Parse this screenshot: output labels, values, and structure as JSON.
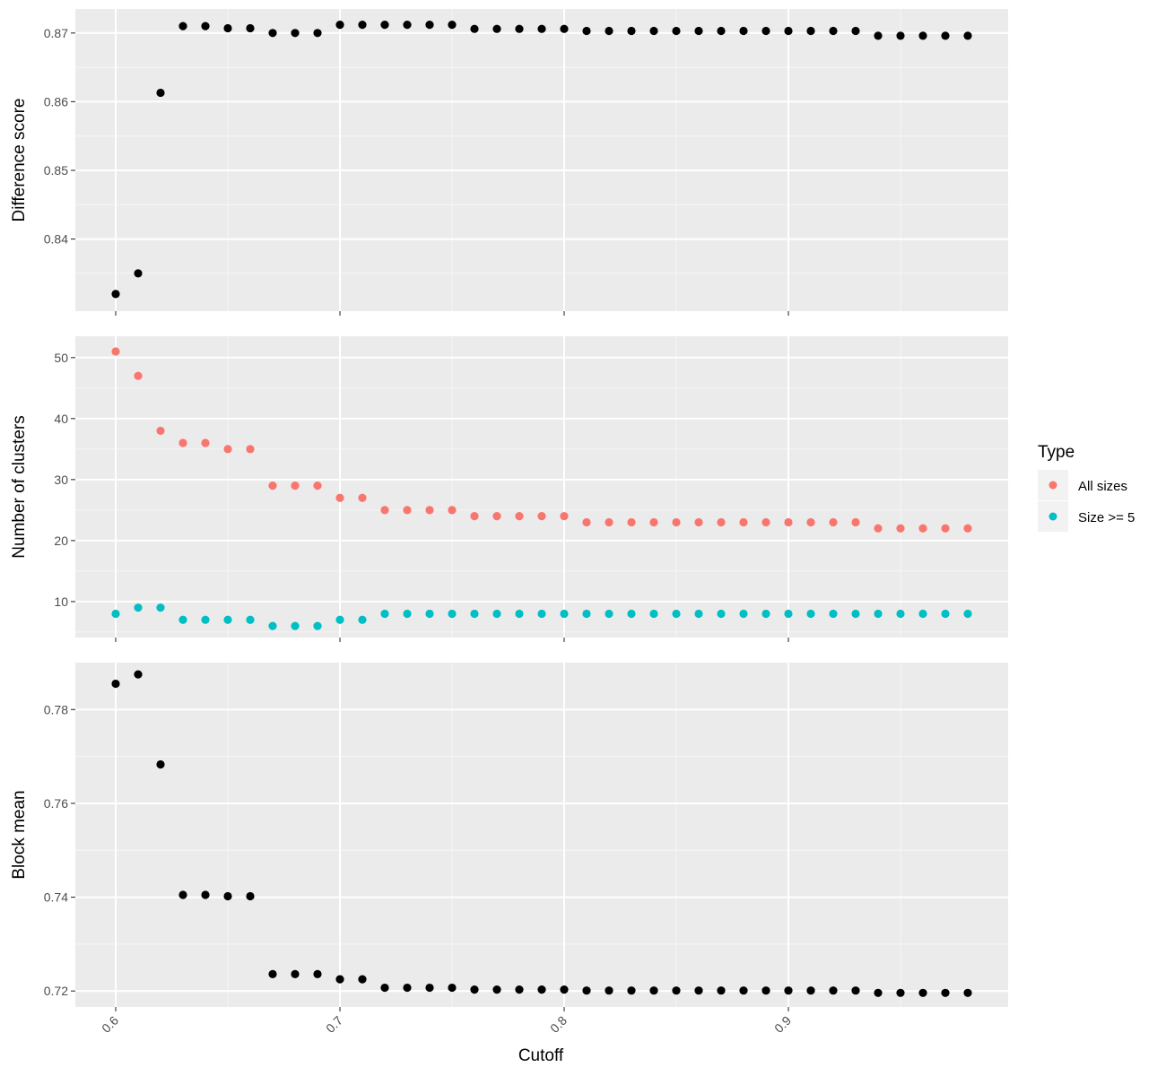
{
  "chart_data": [
    {
      "type": "scatter",
      "panel": "top",
      "ylabel": "Difference score",
      "ylim": [
        0.8295,
        0.8735
      ],
      "yticks": [
        0.84,
        0.85,
        0.86,
        0.87
      ],
      "ytick_labels": [
        "0.84",
        "0.85",
        "0.86",
        "0.87"
      ],
      "grid": true,
      "series": [
        {
          "color": "#000000",
          "values": [
            0.832,
            0.835,
            0.8613,
            0.871,
            0.871,
            0.8707,
            0.8707,
            0.87,
            0.87,
            0.87,
            0.8712,
            0.8712,
            0.8712,
            0.8712,
            0.8712,
            0.8712,
            0.8706,
            0.8706,
            0.8706,
            0.8706,
            0.8706,
            0.8703,
            0.8703,
            0.8703,
            0.8703,
            0.8703,
            0.8703,
            0.8703,
            0.8703,
            0.8703,
            0.8703,
            0.8703,
            0.8703,
            0.8703,
            0.8696,
            0.8696,
            0.8696,
            0.8696,
            0.8696
          ]
        }
      ]
    },
    {
      "type": "scatter",
      "panel": "middle",
      "ylabel": "Number of clusters",
      "ylim": [
        4.1,
        53.5
      ],
      "yticks": [
        10,
        20,
        30,
        40,
        50
      ],
      "ytick_labels": [
        "10",
        "20",
        "30",
        "40",
        "50"
      ],
      "grid": true,
      "legend": {
        "title": "Type",
        "position": "right"
      },
      "series": [
        {
          "name": "All sizes",
          "color": "#F8766D",
          "values": [
            51,
            47,
            38,
            36,
            36,
            35,
            35,
            29,
            29,
            29,
            27,
            27,
            25,
            25,
            25,
            25,
            24,
            24,
            24,
            24,
            24,
            23,
            23,
            23,
            23,
            23,
            23,
            23,
            23,
            23,
            23,
            23,
            23,
            23,
            22,
            22,
            22,
            22,
            22
          ]
        },
        {
          "name": "Size >= 5",
          "color": "#00BFC4",
          "values": [
            8,
            9,
            9,
            7,
            7,
            7,
            7,
            6,
            6,
            6,
            7,
            7,
            8,
            8,
            8,
            8,
            8,
            8,
            8,
            8,
            8,
            8,
            8,
            8,
            8,
            8,
            8,
            8,
            8,
            8,
            8,
            8,
            8,
            8,
            8,
            8,
            8,
            8,
            8
          ]
        }
      ]
    },
    {
      "type": "scatter",
      "panel": "bottom",
      "ylabel": "Block mean",
      "xlabel": "Cutoff",
      "ylim": [
        0.7166,
        0.79
      ],
      "yticks": [
        0.72,
        0.74,
        0.76,
        0.78
      ],
      "ytick_labels": [
        "0.72",
        "0.74",
        "0.76",
        "0.78"
      ],
      "grid": true,
      "series": [
        {
          "color": "#000000",
          "values": [
            0.7855,
            0.7875,
            0.7683,
            0.7405,
            0.7405,
            0.7402,
            0.7402,
            0.7236,
            0.7236,
            0.7236,
            0.7225,
            0.7225,
            0.7207,
            0.7207,
            0.7207,
            0.7207,
            0.7203,
            0.7203,
            0.7203,
            0.7203,
            0.7203,
            0.7201,
            0.7201,
            0.7201,
            0.7201,
            0.7201,
            0.7201,
            0.7201,
            0.7201,
            0.7201,
            0.7201,
            0.7201,
            0.7201,
            0.7201,
            0.7196,
            0.7196,
            0.7196,
            0.7196,
            0.7196
          ]
        }
      ]
    }
  ],
  "shared_x": {
    "values": [
      0.6,
      0.61,
      0.62,
      0.63,
      0.64,
      0.65,
      0.66,
      0.67,
      0.68,
      0.69,
      0.7,
      0.71,
      0.72,
      0.73,
      0.74,
      0.75,
      0.76,
      0.77,
      0.78,
      0.79,
      0.8,
      0.81,
      0.82,
      0.83,
      0.84,
      0.85,
      0.86,
      0.87,
      0.88,
      0.89,
      0.9,
      0.91,
      0.92,
      0.93,
      0.94,
      0.95,
      0.96,
      0.97,
      0.98
    ],
    "xlim": [
      0.582,
      0.998
    ],
    "xticks": [
      0.6,
      0.7,
      0.8,
      0.9
    ],
    "xtick_labels": [
      "0.6",
      "0.7",
      "0.8",
      "0.9"
    ],
    "xlabel": "Cutoff"
  },
  "legend": {
    "title": "Type",
    "items": [
      {
        "label": "All sizes",
        "color": "#F8766D"
      },
      {
        "label": "Size >= 5",
        "color": "#00BFC4"
      }
    ]
  },
  "colors": {
    "panel_bg": "#EBEBEB",
    "grid_major": "#FFFFFF",
    "grid_minor": "#F5F5F5",
    "tick": "#333333"
  }
}
